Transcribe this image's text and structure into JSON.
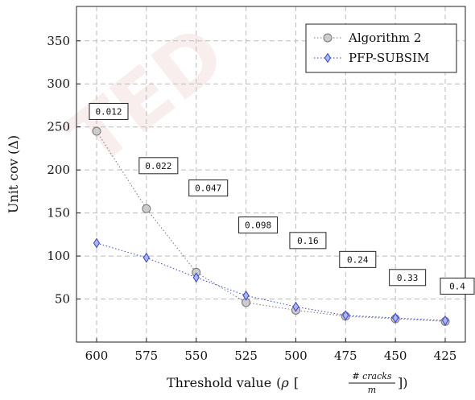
{
  "chart_data": {
    "type": "line",
    "categories": [
      "600",
      "575",
      "550",
      "525",
      "500",
      "475",
      "450",
      "425"
    ],
    "xlabel": "Threshold value",
    "xlabel_rho": "ρ",
    "xlabel_frac_num": "# cracks",
    "xlabel_frac_den": "m",
    "ylabel": "Unit cov (Δ)",
    "ylim": [
      0,
      390
    ],
    "yticks": [
      50,
      100,
      150,
      200,
      250,
      300,
      350
    ],
    "grid": true,
    "legend_position": "top-right",
    "series": [
      {
        "name": "Algorithm 2",
        "marker": "circle",
        "color": "#777777",
        "fill": "#cccccc",
        "values": [
          245,
          155,
          81,
          46,
          37,
          30,
          27,
          24
        ]
      },
      {
        "name": "PFP-SUBSIM",
        "marker": "diamond",
        "color": "#3344cc",
        "fill": "#aab4ff",
        "values": [
          115,
          98,
          75,
          54,
          41,
          31,
          28,
          25
        ]
      }
    ],
    "annotations": [
      {
        "text": "0.012",
        "x": "600",
        "y": 268
      },
      {
        "text": "0.022",
        "x": "575",
        "y": 205
      },
      {
        "text": "0.047",
        "x": "550",
        "y": 179
      },
      {
        "text": "0.098",
        "x": "525",
        "y": 136
      },
      {
        "text": "0.16",
        "x": "500",
        "y": 118
      },
      {
        "text": "0.24",
        "x": "475",
        "y": 96
      },
      {
        "text": "0.33",
        "x": "450",
        "y": 75
      },
      {
        "text": "0.4",
        "x": "425",
        "y": 65
      }
    ]
  },
  "watermark": "TED"
}
